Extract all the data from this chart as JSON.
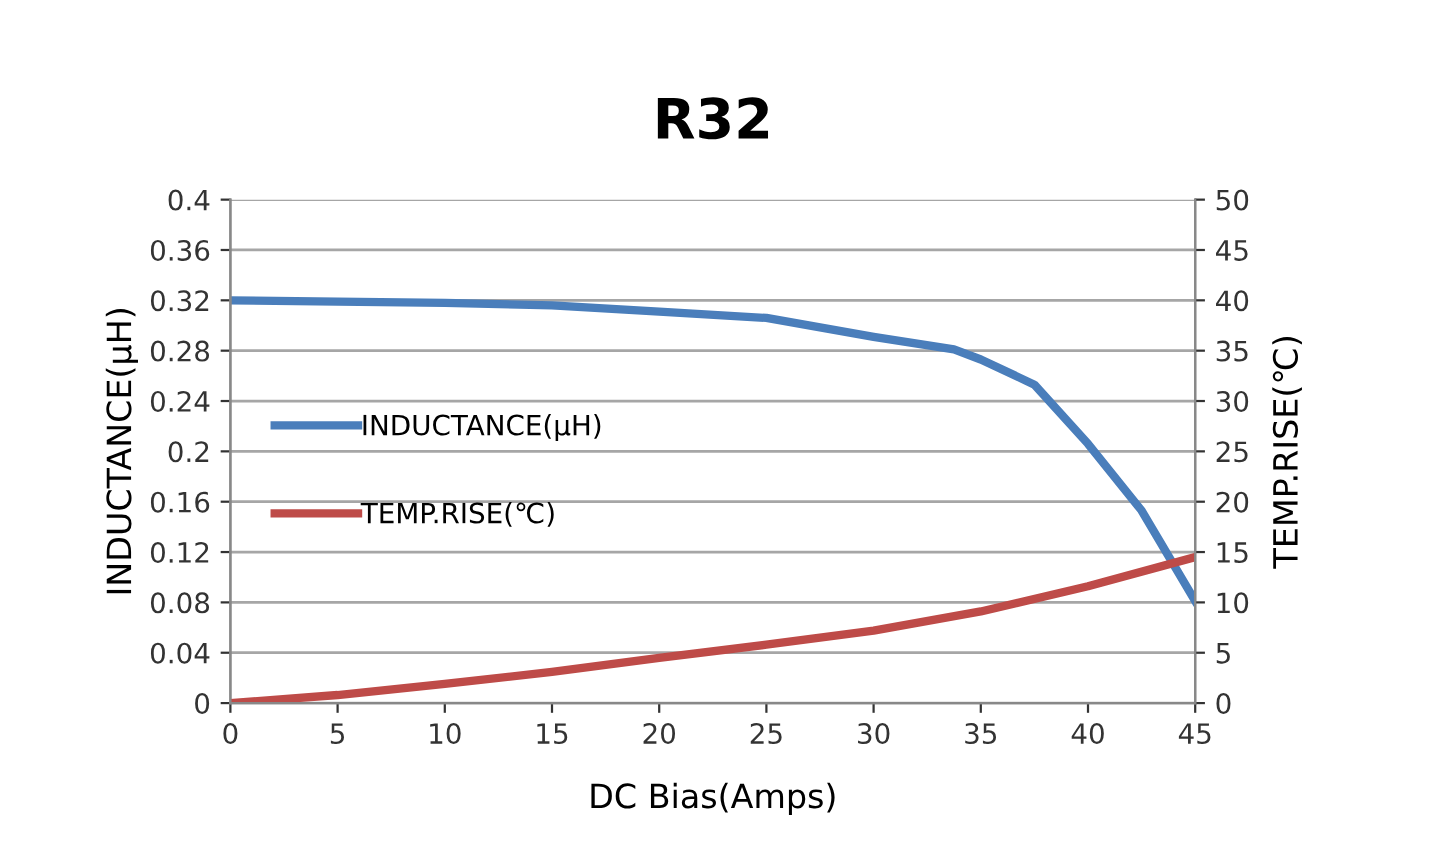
{
  "chart_data": {
    "type": "line",
    "title": "R32",
    "xlabel": "DC Bias(Amps)",
    "ylabel": "INDUCTANCE(μH)",
    "y2label": "TEMP.RISE(℃)",
    "x": [
      0,
      5,
      10,
      15,
      20,
      25,
      30,
      33.75,
      35,
      37.5,
      40,
      42.5,
      45
    ],
    "series": [
      {
        "name": "INDUCTANCE(μH)",
        "color": "#4a7ebb",
        "values": [
          0.32,
          0.319,
          0.318,
          0.316,
          0.311,
          0.306,
          0.291,
          0.281,
          0.273,
          0.253,
          0.206,
          0.153,
          0.081
        ]
      },
      {
        "name": "TEMP.RISE(℃)",
        "color": "#be4b48",
        "axis": "y2",
        "x": [
          0,
          5,
          10,
          15,
          20,
          25,
          30,
          35,
          40,
          45
        ],
        "values": [
          0,
          0.8,
          1.9,
          3.1,
          4.5,
          5.8,
          7.2,
          9.1,
          11.6,
          14.5
        ]
      }
    ],
    "xlim": [
      0,
      45
    ],
    "xticks": [
      0,
      5,
      10,
      15,
      20,
      25,
      30,
      35,
      40,
      45
    ],
    "ylim": [
      0,
      0.4
    ],
    "yticks": [
      0,
      0.04,
      0.08,
      0.12,
      0.16,
      0.2,
      0.24,
      0.28,
      0.32,
      0.36,
      0.4
    ],
    "y2lim": [
      0,
      50
    ],
    "y2ticks": [
      0,
      5,
      10,
      15,
      20,
      25,
      30,
      35,
      40,
      45,
      50
    ],
    "grid": "y",
    "legend": "left",
    "marker": "none",
    "line_style": "solid"
  }
}
